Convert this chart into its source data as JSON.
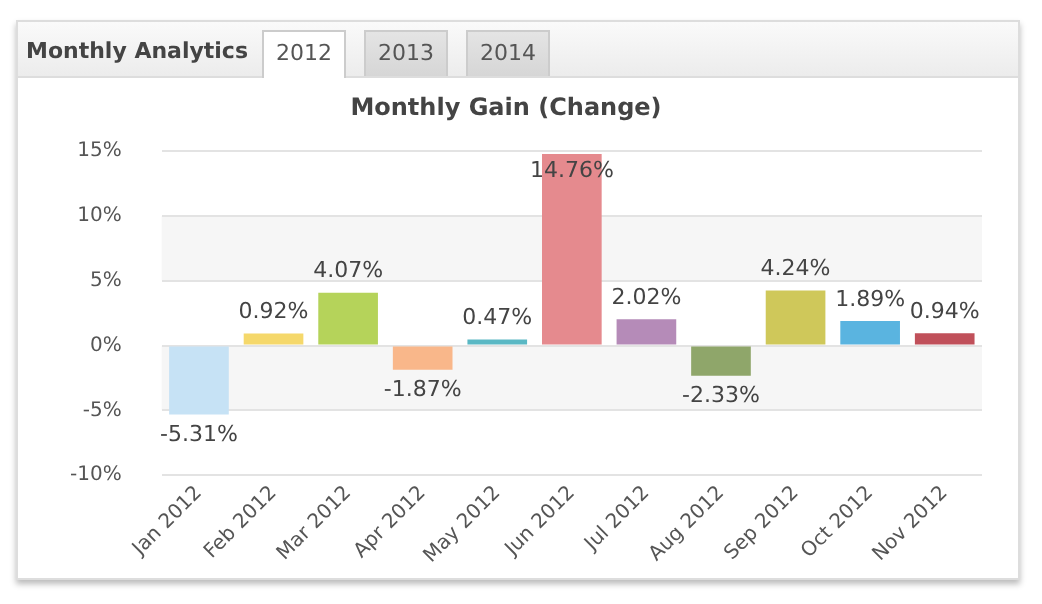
{
  "chart_data": {
    "type": "bar",
    "title": "Monthly Gain (Change)",
    "annotations": [
      "Monthly Analytics",
      "2012",
      "2013",
      "2014"
    ],
    "categories": [
      "Jan 2012",
      "Feb 2012",
      "Mar 2012",
      "Apr 2012",
      "May 2012",
      "Jun 2012",
      "Jul 2012",
      "Aug 2012",
      "Sep 2012",
      "Oct 2012",
      "Nov 2012"
    ],
    "values": [
      -5.31,
      0.92,
      4.07,
      -1.87,
      0.47,
      14.76,
      2.02,
      -2.33,
      4.24,
      1.89,
      0.94
    ],
    "value_labels": [
      "-5.31%",
      "0.92%",
      "4.07%",
      "-1.87%",
      "0.47%",
      "14.76%",
      "2.02%",
      "-2.33%",
      "4.24%",
      "1.89%",
      "0.94%"
    ],
    "colors": [
      "#c6e2f5",
      "#f5d86b",
      "#b5d35a",
      "#f9b78a",
      "#5ab8c4",
      "#e58a8e",
      "#b58bb8",
      "#8fa66a",
      "#cfc85a",
      "#5ab4e0",
      "#c0505a"
    ],
    "ylim": [
      -10,
      15
    ],
    "yticks": [
      {
        "value": -10,
        "label": "-10%"
      },
      {
        "value": -5,
        "label": "-5%"
      },
      {
        "value": 0,
        "label": "0%"
      },
      {
        "value": 5,
        "label": "5%"
      },
      {
        "value": 10,
        "label": "10%"
      },
      {
        "value": 15,
        "label": "15%"
      }
    ],
    "bands": [
      {
        "axis": "y",
        "from": 5,
        "to": 10,
        "color": "#f6f6f6"
      },
      {
        "axis": "y",
        "from": -5,
        "to": 0,
        "color": "#f6f6f6"
      }
    ],
    "grid": "y",
    "legend": false
  }
}
